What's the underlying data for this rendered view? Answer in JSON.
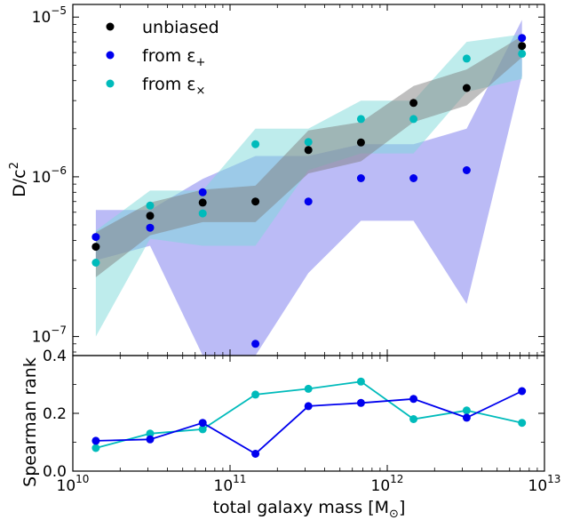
{
  "chart_data": [
    {
      "type": "scatter",
      "panel": "top",
      "xscale": "log",
      "yscale": "log",
      "xlim": [
        10000000000,
        10000000000000
      ],
      "ylim": [
        7.6e-08,
        1.2e-05
      ],
      "ylabel_html": "D/c²",
      "ylabel": "D/c^2",
      "yticks": [
        {
          "value": 1e-07,
          "base": "10",
          "exp": "−7"
        },
        {
          "value": 1e-06,
          "base": "10",
          "exp": "−6"
        },
        {
          "value": 1e-05,
          "base": "10",
          "exp": "−5"
        }
      ],
      "x": [
        14000000000,
        31000000000,
        67000000000,
        145000000000,
        315000000000,
        680000000000,
        1470000000000,
        3200000000000,
        7200000000000
      ],
      "series": [
        {
          "name": "unbiased",
          "color": "#000000",
          "band_color": "#808080",
          "values": [
            3.65e-07,
            5.7e-07,
            6.9e-07,
            7e-07,
            1.47e-06,
            1.64e-06,
            2.9e-06,
            3.6e-06,
            6.6e-06
          ],
          "lower": [
            2.35e-07,
            4.3e-07,
            5.2e-07,
            5.2e-07,
            1.05e-06,
            1.25e-06,
            2.2e-06,
            2.8e-06,
            5.6e-06
          ],
          "upper": [
            4.5e-07,
            6.9e-07,
            8.3e-07,
            8.8e-07,
            1.95e-06,
            2.2e-06,
            3.7e-06,
            4.7e-06,
            7.6e-06
          ]
        },
        {
          "name": "from ε₊",
          "name_base": "from ε",
          "name_sub": "+",
          "color": "#0000ee",
          "band_color": "#7777ee",
          "values": [
            4.2e-07,
            4.8e-07,
            8e-07,
            9e-08,
            7e-07,
            9.8e-07,
            9.8e-07,
            1.1e-06,
            7.4e-06
          ],
          "lower": [
            3e-07,
            3.7e-07,
            7.6e-08,
            7.6e-08,
            2.5e-07,
            5.3e-07,
            5.3e-07,
            1.6e-07,
            4.3e-06
          ],
          "upper": [
            6.2e-07,
            6.2e-07,
            9.7e-07,
            1.35e-06,
            1.35e-06,
            1.6e-06,
            1.6e-06,
            2e-06,
            9.6e-06
          ]
        },
        {
          "name": "from ε×",
          "name_base": "from ε",
          "name_sub": "×",
          "color": "#00bbbb",
          "band_color": "#7dd9d9",
          "values": [
            2.9e-07,
            6.6e-07,
            5.9e-07,
            1.6e-06,
            1.65e-06,
            2.3e-06,
            2.3e-06,
            5.5e-06,
            5.9e-06
          ],
          "lower": [
            1e-07,
            4.1e-07,
            3.7e-07,
            3.7e-07,
            1.1e-06,
            1.4e-06,
            1.4e-06,
            3.4e-06,
            4.1e-06
          ],
          "upper": [
            4.6e-07,
            8.2e-07,
            8.2e-07,
            2e-06,
            2e-06,
            3e-06,
            3e-06,
            7e-06,
            7.8e-06
          ]
        }
      ]
    },
    {
      "type": "line",
      "panel": "bottom",
      "xscale": "log",
      "xlim": [
        10000000000,
        10000000000000
      ],
      "ylim": [
        0.0,
        0.4
      ],
      "ylabel": "Spearman rank",
      "xlabel_html": "total galaxy mass [M⊙]",
      "xlabel": "total galaxy mass [M_sun]",
      "yticks": [
        "0.0",
        "0.2",
        "0.4"
      ],
      "xticks": [
        {
          "value": 10000000000,
          "base": "10",
          "exp": "10"
        },
        {
          "value": 100000000000,
          "base": "10",
          "exp": "11"
        },
        {
          "value": 1000000000000,
          "base": "10",
          "exp": "12"
        },
        {
          "value": 10000000000000,
          "base": "10",
          "exp": "13"
        }
      ],
      "x": [
        14000000000,
        31000000000,
        67000000000,
        145000000000,
        315000000000,
        680000000000,
        1470000000000,
        3200000000000,
        7200000000000
      ],
      "series": [
        {
          "name": "from ε₊",
          "color": "#0000ee",
          "values": [
            0.105,
            0.11,
            0.167,
            0.06,
            0.225,
            0.236,
            0.25,
            0.185,
            0.277
          ]
        },
        {
          "name": "from ε×",
          "color": "#00bbbb",
          "values": [
            0.08,
            0.13,
            0.145,
            0.265,
            0.285,
            0.31,
            0.18,
            0.21,
            0.167
          ]
        }
      ]
    }
  ]
}
